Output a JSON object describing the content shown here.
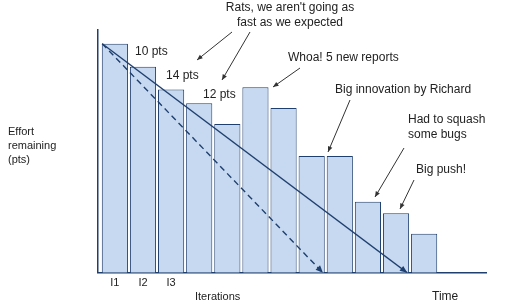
{
  "chart_data": {
    "type": "bar",
    "ylabel": "Effort\nremaining\n(pts)",
    "xlabel": "Iterations",
    "categories": [
      "I1",
      "I2",
      "I3",
      null,
      null,
      null,
      null,
      null,
      null,
      null,
      null,
      null
    ],
    "values": [
      100,
      90,
      80,
      74,
      65,
      81,
      72,
      51,
      51,
      31,
      26,
      17
    ],
    "color": "#c6d9f0",
    "xlim": [
      -0.6,
      13.2
    ],
    "ylim": [
      0,
      106
    ],
    "tick_labels": "x",
    "grid": false,
    "series": [
      {
        "type": "line",
        "line_style": "dashed",
        "marker": "arrow",
        "color": "#1f3f6e",
        "x": [
          -0.45,
          7.4
        ],
        "values": [
          100,
          0
        ]
      },
      {
        "type": "line",
        "line_style": "solid",
        "marker": "arrow",
        "color": "#1f3f6e",
        "x": [
          -0.45,
          10.4
        ],
        "values": [
          100,
          0
        ]
      }
    ],
    "annotations": [
      "Rats, we aren't going as\nfast as we expected",
      "10 pts",
      "14 pts",
      "12 pts",
      "Whoa! 5 new reports",
      "Big innovation by Richard",
      "Had to squash\nsome bugs",
      "Big push!",
      "Time"
    ]
  }
}
